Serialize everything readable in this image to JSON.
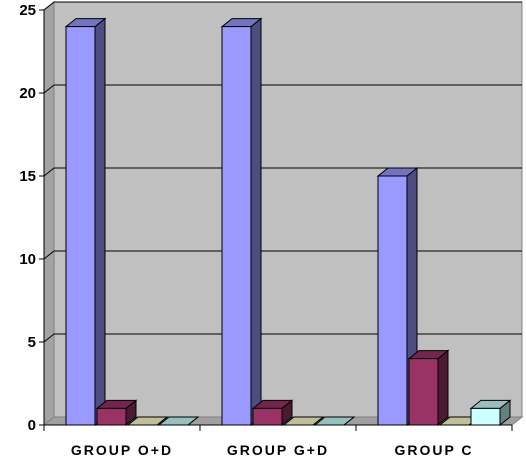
{
  "chart_data": {
    "type": "bar",
    "categories": [
      "GROUP O+D",
      "GROUP G+D",
      "GROUP C"
    ],
    "series": [
      {
        "values": [
          24,
          24,
          15
        ],
        "color": "#9999ff"
      },
      {
        "values": [
          1,
          1,
          4
        ],
        "color": "#993366"
      },
      {
        "values": [
          0,
          0,
          0
        ],
        "color": "#ffffcc"
      },
      {
        "values": [
          0,
          0,
          1
        ],
        "color": "#ccffff"
      }
    ],
    "ylim": [
      0,
      25
    ],
    "yticks": [
      0,
      5,
      10,
      15,
      20,
      25
    ],
    "grid": true,
    "wall_color": "#c0c0c0",
    "title": "",
    "xlabel": "",
    "ylabel": ""
  }
}
